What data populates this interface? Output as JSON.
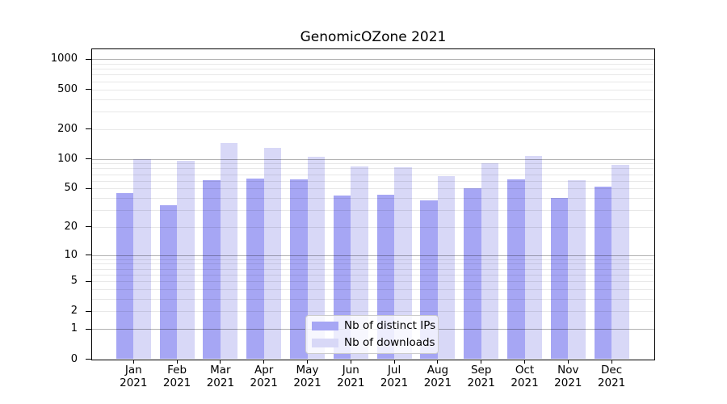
{
  "title": "GenomicOZone 2021",
  "legend": {
    "items": [
      {
        "label": "Nb of distinct IPs",
        "color": "#a6a6f4"
      },
      {
        "label": "Nb of downloads",
        "color": "#d8d8f7"
      }
    ]
  },
  "chart_data": {
    "type": "bar",
    "title": "GenomicOZone 2021",
    "categories": [
      "Jan 2021",
      "Feb 2021",
      "Mar 2021",
      "Apr 2021",
      "May 2021",
      "Jun 2021",
      "Jul 2021",
      "Aug 2021",
      "Sep 2021",
      "Oct 2021",
      "Nov 2021",
      "Dec 2021"
    ],
    "series": [
      {
        "name": "Nb of distinct IPs",
        "color": "#a6a6f4",
        "values": [
          45,
          34,
          61,
          63,
          62,
          42,
          43,
          38,
          50,
          62,
          40,
          52
        ]
      },
      {
        "name": "Nb of downloads",
        "color": "#d8d8f7",
        "values": [
          100,
          95,
          145,
          128,
          104,
          83,
          82,
          67,
          90,
          107,
          61,
          87
        ]
      }
    ],
    "xlabel": "",
    "ylabel": "",
    "yscale": "symlog",
    "y_ticks": [
      0,
      1,
      2,
      5,
      10,
      20,
      50,
      100,
      200,
      500,
      1000
    ],
    "y_major_gridlines": [
      1,
      10,
      100,
      1000
    ],
    "y_minor_gridlines": [
      2,
      3,
      4,
      5,
      6,
      7,
      8,
      9,
      20,
      30,
      40,
      50,
      60,
      70,
      80,
      90,
      200,
      300,
      400,
      500,
      600,
      700,
      800,
      900
    ],
    "ylim": [
      0,
      1230
    ],
    "grid": "horizontal",
    "legend_position": "lower center"
  },
  "colors": {
    "grid_major": "rgba(0,0,0,0.30)",
    "grid_minor": "rgba(0,0,0,0.09)",
    "frame": "#000000",
    "legend_border": "#cccccc"
  }
}
